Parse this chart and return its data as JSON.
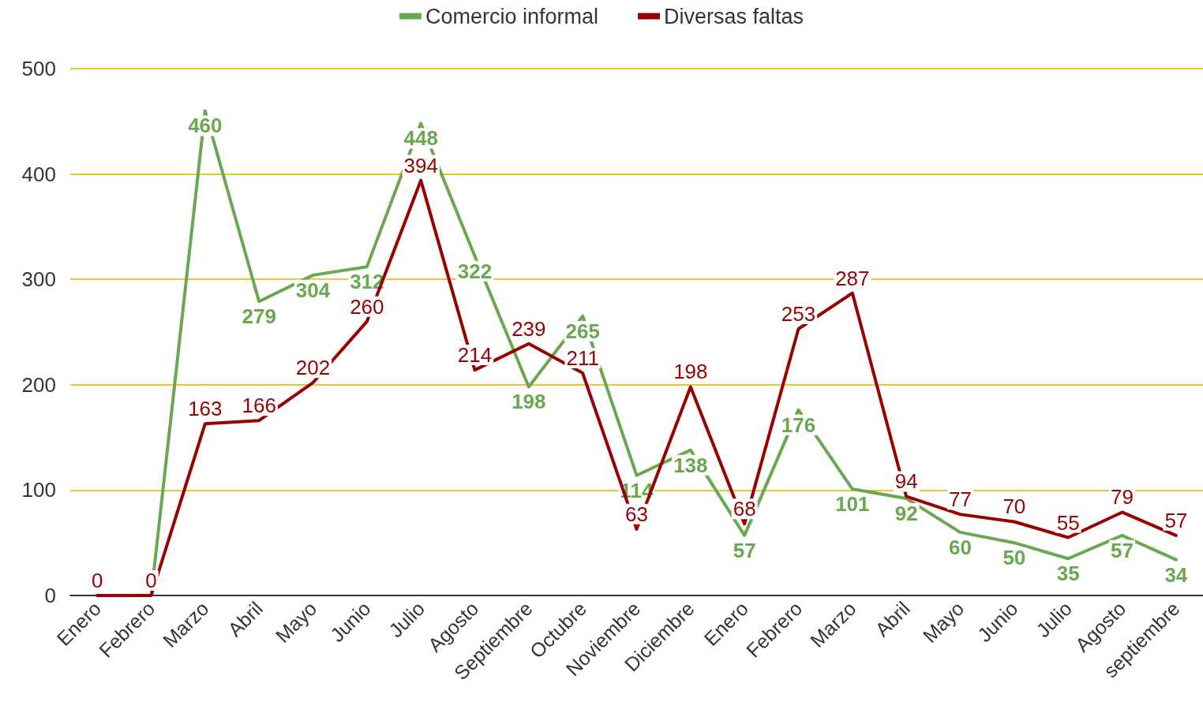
{
  "chart_data": {
    "type": "line",
    "categories": [
      "Enero",
      "Febrero",
      "Marzo",
      "Abril",
      "Mayo",
      "Junio",
      "Julio",
      "Agosto",
      "Septiembre",
      "Octubre",
      "Noviembre",
      "Diciembre",
      "Enero",
      "Febrero",
      "Marzo",
      "Abril",
      "Mayo",
      "Junio",
      "Julio",
      "Agosto",
      "septiembre"
    ],
    "series": [
      {
        "name": "Comercio informal",
        "color": "#6aa84f",
        "values": [
          null,
          0,
          460,
          279,
          304,
          312,
          448,
          322,
          198,
          265,
          114,
          138,
          57,
          176,
          101,
          92,
          60,
          50,
          35,
          57,
          34
        ],
        "value_labels": [
          null,
          null,
          "460",
          "279",
          "304",
          "312",
          "448",
          "322",
          "198",
          "265",
          "114",
          "138",
          "57",
          "176",
          "101",
          "92",
          "60",
          "50",
          "35",
          "57",
          "34"
        ]
      },
      {
        "name": "Diversas faltas",
        "color": "#990000",
        "values": [
          0,
          0,
          163,
          166,
          202,
          260,
          394,
          214,
          239,
          211,
          63,
          198,
          68,
          253,
          287,
          94,
          77,
          70,
          55,
          79,
          57
        ],
        "value_labels": [
          "0",
          "0",
          "163",
          "166",
          "202",
          "260",
          "394",
          "214",
          "239",
          "211",
          "63",
          "198",
          "68",
          "253",
          "287",
          "94",
          "77",
          "70",
          "55",
          "79",
          "57"
        ]
      }
    ],
    "ylim": [
      0,
      500
    ],
    "yticks": [
      0,
      100,
      200,
      300,
      400,
      500
    ],
    "grid": "y",
    "legend": "top",
    "marker": "none",
    "line_style": "solid"
  }
}
